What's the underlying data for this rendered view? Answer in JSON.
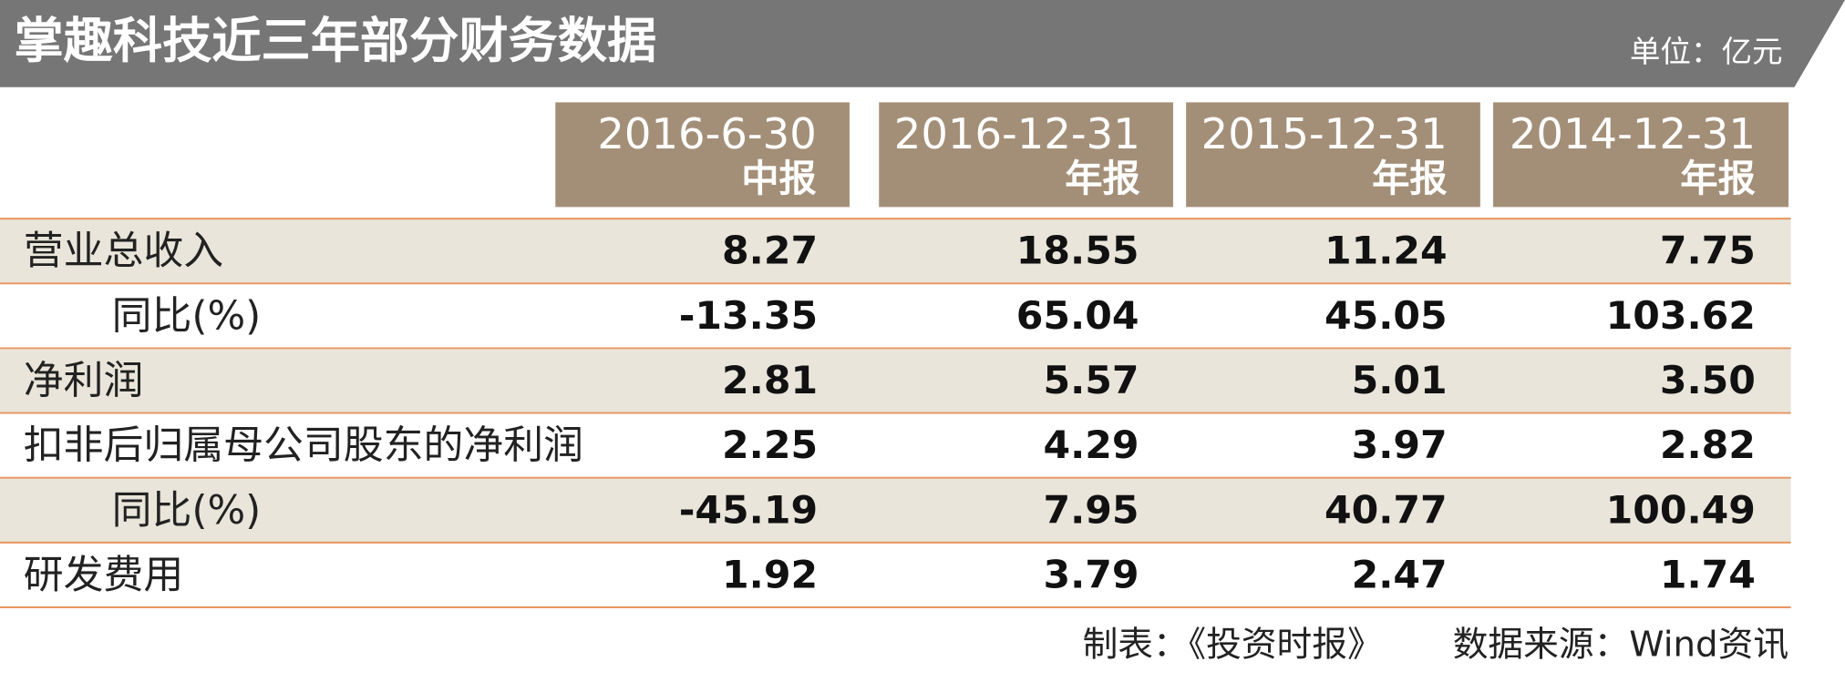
{
  "header": {
    "title": "掌趣科技近三年部分财务数据",
    "unit": "单位：亿元"
  },
  "table": {
    "columns": [
      {
        "date": "2016-6-30",
        "type": "中报"
      },
      {
        "date": "2016-12-31",
        "type": "年报"
      },
      {
        "date": "2015-12-31",
        "type": "年报"
      },
      {
        "date": "2014-12-31",
        "type": "年报"
      }
    ],
    "rows": [
      {
        "label": "营业总收入",
        "values": [
          "8.27",
          "18.55",
          "11.24",
          "7.75"
        ]
      },
      {
        "label": "同比(%)",
        "values": [
          "-13.35",
          "65.04",
          "45.05",
          "103.62"
        ]
      },
      {
        "label": "净利润",
        "values": [
          "2.81",
          "5.57",
          "5.01",
          "3.50"
        ]
      },
      {
        "label": "扣非后归属母公司股东的净利润",
        "values": [
          "2.25",
          "4.29",
          "3.97",
          "2.82"
        ]
      },
      {
        "label": "同比(%)",
        "values": [
          "-45.19",
          "7.95",
          "40.77",
          "100.49"
        ]
      },
      {
        "label": "研发费用",
        "values": [
          "1.92",
          "3.79",
          "2.47",
          "1.74"
        ]
      }
    ]
  },
  "footer": {
    "maker": "制表：《投资时报》",
    "source": "数据来源：Wind资讯"
  }
}
